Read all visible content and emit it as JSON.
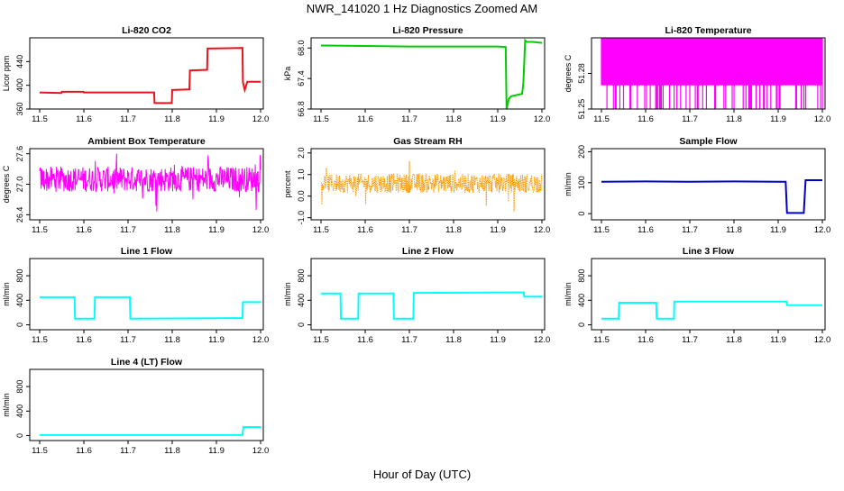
{
  "title": "NWR_141020  1 Hz Diagnostics Zoomed AM",
  "xlabel": "Hour of Day (UTC)",
  "chart_data": [
    {
      "type": "line",
      "title": "Li-820 CO2",
      "ylabel": "Licor ppm",
      "color": "#e8141b",
      "x_ticks": [
        11.5,
        11.6,
        11.7,
        11.8,
        11.9,
        12.0
      ],
      "x_tick_labels": [
        "11.5",
        "11.6",
        "11.7",
        "11.8",
        "11.9",
        "12.0"
      ],
      "xlim": [
        11.5,
        12.0
      ],
      "ylim": [
        360,
        480
      ],
      "y_ticks": [
        360,
        400,
        440
      ],
      "y_tick_labels": [
        "360",
        "400",
        "440"
      ],
      "series": [
        {
          "x": [
            11.5,
            11.549,
            11.55,
            11.599,
            11.6,
            11.759,
            11.76,
            11.799,
            11.8,
            11.839,
            11.84,
            11.879,
            11.88,
            11.959,
            11.96,
            11.964,
            11.97,
            12.0
          ],
          "y": [
            388,
            387,
            389,
            389,
            388,
            388,
            370,
            370,
            392,
            393,
            425,
            426,
            462,
            463,
            405,
            392,
            406,
            406
          ]
        }
      ]
    },
    {
      "type": "line",
      "title": "Li-820 Pressure",
      "ylabel": "kPa",
      "color": "#00cc00",
      "x_ticks": [
        11.5,
        11.6,
        11.7,
        11.8,
        11.9,
        12.0
      ],
      "x_tick_labels": [
        "11.5",
        "11.6",
        "11.7",
        "11.8",
        "11.9",
        "12.0"
      ],
      "xlim": [
        11.5,
        12.0
      ],
      "ylim": [
        66.8,
        68.2
      ],
      "y_ticks": [
        66.8,
        67.4,
        68.0
      ],
      "y_tick_labels": [
        "66.8",
        "67.4",
        "68.0"
      ],
      "series": [
        {
          "x": [
            11.5,
            11.6,
            11.7,
            11.8,
            11.9,
            11.918,
            11.92,
            11.925,
            11.93,
            11.955,
            11.958,
            11.962,
            11.966,
            11.98,
            12.0
          ],
          "y": [
            68.05,
            68.04,
            68.03,
            68.03,
            68.03,
            68.02,
            66.8,
            67.0,
            67.05,
            67.1,
            67.3,
            68.15,
            68.12,
            68.12,
            68.1
          ]
        }
      ]
    },
    {
      "type": "line",
      "title": "Li-820 Temperature",
      "ylabel": "degrees C",
      "color": "#ff00ff",
      "x_ticks": [
        11.5,
        11.6,
        11.7,
        11.8,
        11.9,
        12.0
      ],
      "x_tick_labels": [
        "11.5",
        "11.6",
        "11.7",
        "11.8",
        "11.9",
        "12.0"
      ],
      "xlim": [
        11.5,
        12.0
      ],
      "ylim": [
        51.25,
        51.31
      ],
      "y_ticks": [
        51.25,
        51.28
      ],
      "y_tick_labels": [
        "51.25",
        "51.28"
      ],
      "levels": [
        51.25,
        51.27,
        51.28,
        51.31
      ]
    },
    {
      "type": "line",
      "title": "Ambient Box Temperature",
      "ylabel": "degrees C",
      "color": "#ff00ff",
      "x_ticks": [
        11.5,
        11.6,
        11.7,
        11.8,
        11.9,
        12.0
      ],
      "x_tick_labels": [
        "11.5",
        "11.6",
        "11.7",
        "11.8",
        "11.9",
        "12.0"
      ],
      "xlim": [
        11.5,
        12.0
      ],
      "ylim": [
        26.3,
        27.7
      ],
      "y_ticks": [
        26.4,
        27.0,
        27.6
      ],
      "y_tick_labels": [
        "26.4",
        "27.0",
        "27.6"
      ],
      "noise": {
        "center": 27.1,
        "typical": 0.25,
        "extreme": [
          26.45,
          27.65
        ]
      }
    },
    {
      "type": "scatter",
      "title": "Gas Stream RH",
      "ylabel": "percent",
      "color": "#ff9900",
      "x_ticks": [
        11.5,
        11.6,
        11.7,
        11.8,
        11.9,
        12.0
      ],
      "x_tick_labels": [
        "11.5",
        "11.6",
        "11.7",
        "11.8",
        "11.9",
        "12.0"
      ],
      "xlim": [
        11.5,
        12.0
      ],
      "ylim": [
        -1.1,
        2.2
      ],
      "y_ticks": [
        -1.0,
        0.0,
        1.0,
        2.0
      ],
      "y_tick_labels": [
        "-1.0",
        "0.0",
        "1.0",
        "2.0"
      ],
      "noise": {
        "center": 0.6,
        "typical": 0.45,
        "extreme": [
          -0.9,
          2.0
        ]
      }
    },
    {
      "type": "line",
      "title": "Sample Flow",
      "ylabel": "ml/min",
      "color": "#0000cc",
      "x_ticks": [
        11.5,
        11.6,
        11.7,
        11.8,
        11.9,
        12.0
      ],
      "x_tick_labels": [
        "11.5",
        "11.6",
        "11.7",
        "11.8",
        "11.9",
        "12.0"
      ],
      "xlim": [
        11.5,
        12.0
      ],
      "ylim": [
        -20,
        210
      ],
      "y_ticks": [
        0,
        100,
        200
      ],
      "y_tick_labels": [
        "0",
        "100",
        "200"
      ],
      "series": [
        {
          "x": [
            11.5,
            11.6,
            11.7,
            11.8,
            11.9,
            11.917,
            11.92,
            11.958,
            11.962,
            12.0
          ],
          "y": [
            103,
            104,
            103,
            104,
            103,
            103,
            2,
            2,
            108,
            108
          ]
        }
      ]
    },
    {
      "type": "line",
      "title": "Line 1 Flow",
      "ylabel": "ml/min",
      "color": "#00ffff",
      "x_ticks": [
        11.5,
        11.6,
        11.7,
        11.8,
        11.9,
        12.0
      ],
      "x_tick_labels": [
        "11.5",
        "11.6",
        "11.7",
        "11.8",
        "11.9",
        "12.0"
      ],
      "xlim": [
        11.5,
        12.0
      ],
      "ylim": [
        -80,
        1080
      ],
      "y_ticks": [
        0,
        400,
        800
      ],
      "y_tick_labels": [
        "0",
        "400",
        "800"
      ],
      "series": [
        {
          "x": [
            11.5,
            11.579,
            11.58,
            11.624,
            11.625,
            11.704,
            11.705,
            11.959,
            11.96,
            12.0
          ],
          "y": [
            450,
            450,
            100,
            100,
            450,
            450,
            100,
            110,
            370,
            370
          ]
        }
      ]
    },
    {
      "type": "line",
      "title": "Line 2 Flow",
      "ylabel": "ml/min",
      "color": "#00ffff",
      "x_ticks": [
        11.5,
        11.6,
        11.7,
        11.8,
        11.9,
        12.0
      ],
      "x_tick_labels": [
        "11.5",
        "11.6",
        "11.7",
        "11.8",
        "11.9",
        "12.0"
      ],
      "xlim": [
        11.5,
        12.0
      ],
      "ylim": [
        -80,
        1080
      ],
      "y_ticks": [
        0,
        400,
        800
      ],
      "y_tick_labels": [
        "0",
        "400",
        "800"
      ],
      "series": [
        {
          "x": [
            11.5,
            11.544,
            11.545,
            11.584,
            11.585,
            11.664,
            11.665,
            11.709,
            11.71,
            11.959,
            11.96,
            12.0
          ],
          "y": [
            510,
            510,
            100,
            100,
            510,
            510,
            100,
            100,
            520,
            530,
            460,
            460
          ]
        }
      ]
    },
    {
      "type": "line",
      "title": "Line 3 Flow",
      "ylabel": "ml/min",
      "color": "#00ffff",
      "x_ticks": [
        11.5,
        11.6,
        11.7,
        11.8,
        11.9,
        12.0
      ],
      "x_tick_labels": [
        "11.5",
        "11.6",
        "11.7",
        "11.8",
        "11.9",
        "12.0"
      ],
      "xlim": [
        11.5,
        12.0
      ],
      "ylim": [
        -80,
        1080
      ],
      "y_ticks": [
        0,
        400,
        800
      ],
      "y_tick_labels": [
        "0",
        "400",
        "800"
      ],
      "series": [
        {
          "x": [
            11.5,
            11.539,
            11.54,
            11.624,
            11.625,
            11.664,
            11.665,
            11.919,
            11.92,
            12.0
          ],
          "y": [
            100,
            100,
            360,
            360,
            100,
            100,
            380,
            380,
            320,
            320
          ]
        }
      ]
    },
    {
      "type": "line",
      "title": "Line 4 (LT) Flow",
      "ylabel": "ml/min",
      "color": "#00ffff",
      "x_ticks": [
        11.5,
        11.6,
        11.7,
        11.8,
        11.9,
        12.0
      ],
      "x_tick_labels": [
        "11.5",
        "11.6",
        "11.7",
        "11.8",
        "11.9",
        "12.0"
      ],
      "xlim": [
        11.5,
        12.0
      ],
      "ylim": [
        -80,
        1080
      ],
      "y_ticks": [
        0,
        400,
        800
      ],
      "y_tick_labels": [
        "0",
        "400",
        "800"
      ],
      "series": [
        {
          "x": [
            11.5,
            11.6,
            11.7,
            11.8,
            11.9,
            11.959,
            11.961,
            12.0
          ],
          "y": [
            10,
            10,
            10,
            10,
            10,
            10,
            140,
            140
          ]
        }
      ]
    }
  ]
}
